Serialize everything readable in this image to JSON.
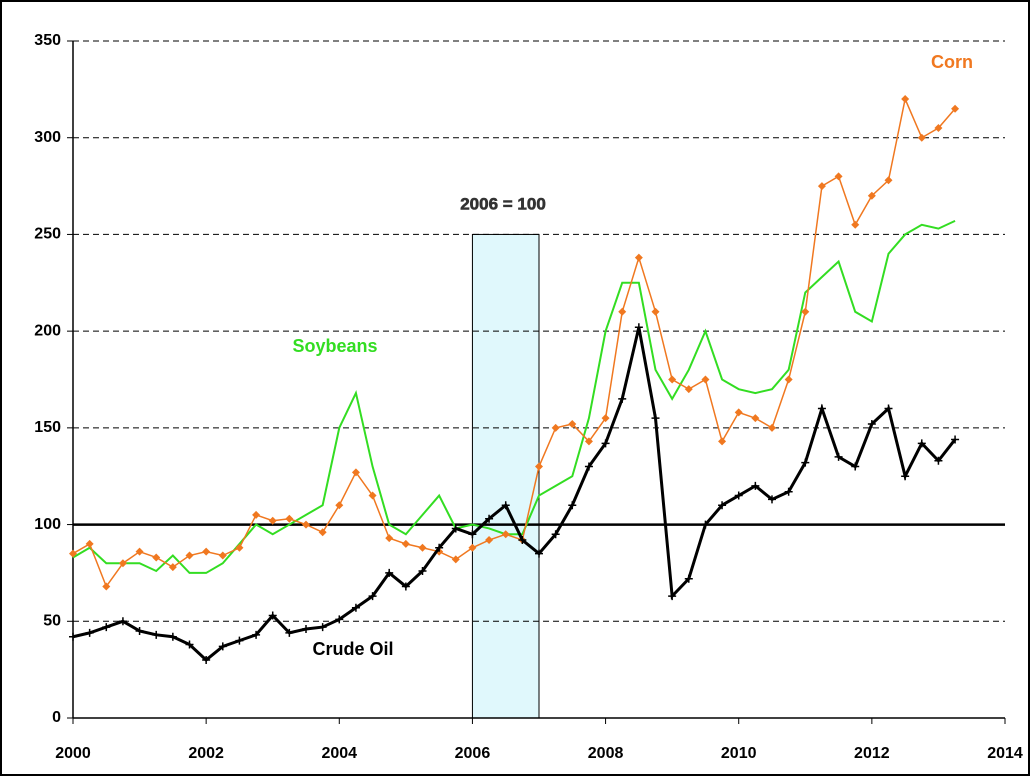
{
  "chart_data": {
    "type": "line",
    "x": [
      2000,
      2000.25,
      2000.5,
      2000.75,
      2001,
      2001.25,
      2001.5,
      2001.75,
      2002,
      2002.25,
      2002.5,
      2002.75,
      2003,
      2003.25,
      2003.5,
      2003.75,
      2004,
      2004.25,
      2004.5,
      2004.75,
      2005,
      2005.25,
      2005.5,
      2005.75,
      2006,
      2006.25,
      2006.5,
      2006.75,
      2007,
      2007.25,
      2007.5,
      2007.75,
      2008,
      2008.25,
      2008.5,
      2008.75,
      2009,
      2009.25,
      2009.5,
      2009.75,
      2010,
      2010.25,
      2010.5,
      2010.75,
      2011,
      2011.25,
      2011.5,
      2011.75,
      2012,
      2012.25,
      2012.5,
      2012.75,
      2013,
      2013.25
    ],
    "series": [
      {
        "name": "Crude Oil",
        "color": "#000000",
        "marker": "plus",
        "values": [
          42,
          44,
          47,
          50,
          45,
          43,
          42,
          38,
          30,
          37,
          40,
          43,
          53,
          44,
          46,
          47,
          51,
          57,
          63,
          75,
          68,
          76,
          88,
          98,
          95,
          103,
          110,
          92,
          85,
          95,
          110,
          130,
          142,
          165,
          202,
          155,
          63,
          72,
          100,
          110,
          115,
          120,
          113,
          117,
          132,
          160,
          135,
          130,
          152,
          160,
          125,
          142,
          133,
          144
        ]
      },
      {
        "name": "Corn",
        "color": "#f07820",
        "marker": "diamond",
        "values": [
          85,
          90,
          68,
          80,
          86,
          83,
          78,
          84,
          86,
          84,
          88,
          105,
          102,
          103,
          100,
          96,
          110,
          127,
          115,
          93,
          90,
          88,
          86,
          82,
          88,
          92,
          95,
          92,
          130,
          150,
          152,
          143,
          155,
          210,
          238,
          210,
          175,
          170,
          175,
          143,
          158,
          155,
          150,
          175,
          210,
          275,
          280,
          255,
          270,
          278,
          320,
          300,
          305,
          315
        ]
      },
      {
        "name": "Soybeans",
        "color": "#33dd22",
        "marker": "none",
        "values": [
          83,
          88,
          80,
          80,
          80,
          76,
          84,
          75,
          75,
          80,
          90,
          100,
          95,
          100,
          105,
          110,
          150,
          168,
          130,
          100,
          95,
          105,
          115,
          98,
          100,
          98,
          95,
          95,
          115,
          120,
          125,
          155,
          200,
          225,
          225,
          180,
          165,
          180,
          200,
          175,
          170,
          168,
          170,
          180,
          220,
          228,
          236,
          210,
          205,
          240,
          250,
          255,
          253,
          257
        ]
      }
    ],
    "annotation": "2006 = 100",
    "band": {
      "x": [
        2006,
        2007
      ],
      "y": [
        0,
        250
      ]
    },
    "hline": 100,
    "xlim": [
      2000,
      2014
    ],
    "xticks": [
      2000,
      2002,
      2004,
      2006,
      2008,
      2010,
      2012,
      2014
    ],
    "ylim": [
      0,
      350
    ],
    "yticks": [
      0,
      50,
      100,
      150,
      200,
      250,
      300,
      350
    ],
    "grid": true
  }
}
